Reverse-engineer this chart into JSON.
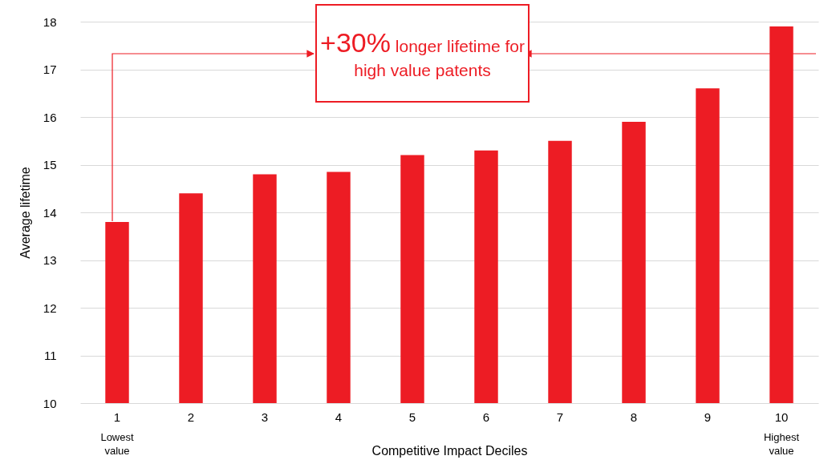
{
  "chart_data": {
    "type": "bar",
    "xlabel": "Competitive Impact Deciles",
    "ylabel": "Average lifetime",
    "categories": [
      "1",
      "2",
      "3",
      "4",
      "5",
      "6",
      "7",
      "8",
      "9",
      "10"
    ],
    "values": [
      13.8,
      14.4,
      14.8,
      14.85,
      15.2,
      15.3,
      15.5,
      15.9,
      16.6,
      17.9
    ],
    "color": "#ed1c24",
    "ylim": [
      10,
      18
    ],
    "yticks": [
      10,
      11,
      12,
      13,
      14,
      15,
      16,
      17,
      18
    ],
    "grid": "y",
    "annotations": [
      "+30% longer lifetime for high value patents",
      "Lowest value",
      "Highest value"
    ]
  }
}
